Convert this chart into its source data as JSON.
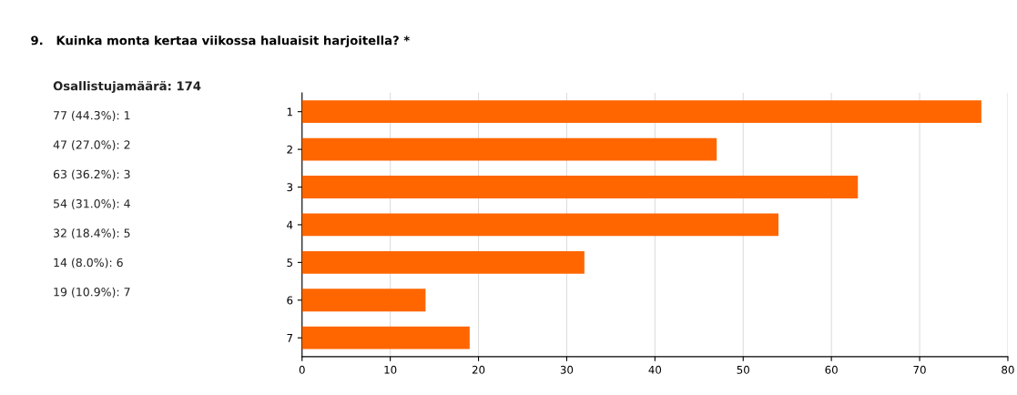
{
  "chart_data": {
    "type": "bar",
    "orientation": "horizontal",
    "title": "9.   Kuinka monta kertaa viikossa haluaisit harjoitella? *",
    "categories": [
      "1",
      "2",
      "3",
      "4",
      "5",
      "6",
      "7"
    ],
    "values": [
      77,
      47,
      63,
      54,
      32,
      14,
      19
    ],
    "color": "#ff6600",
    "xlim": [
      0,
      80
    ],
    "xticks": [
      0,
      10,
      20,
      30,
      40,
      50,
      60,
      70,
      80
    ],
    "grid": "x",
    "annotations": [
      "Osallistujamäärä: 174",
      "77 (44.3%): 1",
      "47 (27.0%): 2",
      "63 (36.2%): 3",
      "54 (31.0%): 4",
      "32 (18.4%): 5",
      "14 (8.0%): 6",
      "19 (10.9%): 7"
    ]
  }
}
